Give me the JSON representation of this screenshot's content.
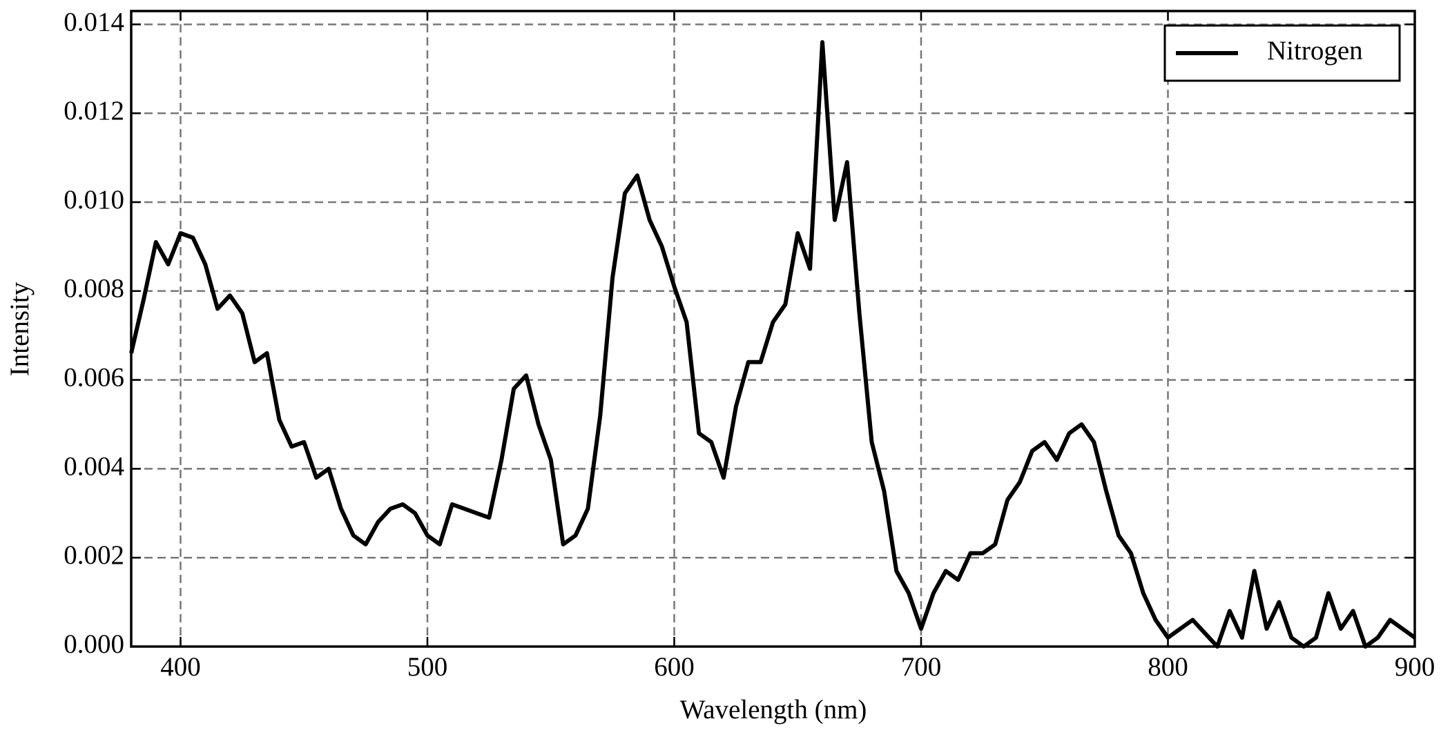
{
  "chart_data": {
    "type": "line",
    "xlabel": "Wavelength (nm)",
    "ylabel": "Intensity",
    "x": [
      380,
      385,
      390,
      395,
      400,
      405,
      410,
      415,
      420,
      425,
      430,
      435,
      440,
      445,
      450,
      455,
      460,
      465,
      470,
      475,
      480,
      485,
      490,
      495,
      500,
      505,
      510,
      515,
      520,
      525,
      530,
      535,
      540,
      545,
      550,
      555,
      560,
      565,
      570,
      575,
      580,
      585,
      590,
      595,
      600,
      605,
      610,
      615,
      620,
      625,
      630,
      635,
      640,
      645,
      650,
      655,
      660,
      665,
      670,
      675,
      680,
      685,
      690,
      695,
      700,
      705,
      710,
      715,
      720,
      725,
      730,
      735,
      740,
      745,
      750,
      755,
      760,
      765,
      770,
      775,
      780,
      785,
      790,
      795,
      800,
      805,
      810,
      815,
      820,
      825,
      830,
      835,
      840,
      845,
      850,
      855,
      860,
      865,
      870,
      875,
      880,
      885,
      890,
      895,
      900
    ],
    "series": [
      {
        "name": "Nitrogen",
        "color": "#000000",
        "values": [
          0.0066,
          0.0078,
          0.0091,
          0.0086,
          0.0093,
          0.0092,
          0.0086,
          0.0076,
          0.0079,
          0.0075,
          0.0064,
          0.0066,
          0.0051,
          0.0045,
          0.0046,
          0.0038,
          0.004,
          0.0031,
          0.0025,
          0.0023,
          0.0028,
          0.0031,
          0.0032,
          0.003,
          0.0025,
          0.0023,
          0.0032,
          0.0031,
          0.003,
          0.0029,
          0.0042,
          0.0058,
          0.0061,
          0.005,
          0.0042,
          0.0023,
          0.0025,
          0.0031,
          0.0052,
          0.0083,
          0.0102,
          0.0106,
          0.0096,
          0.009,
          0.0081,
          0.0073,
          0.0048,
          0.0046,
          0.0038,
          0.0054,
          0.0064,
          0.0064,
          0.0073,
          0.0077,
          0.0093,
          0.0085,
          0.0136,
          0.0096,
          0.0109,
          0.0075,
          0.0046,
          0.0035,
          0.0017,
          0.0012,
          0.0004,
          0.0012,
          0.0017,
          0.0015,
          0.0021,
          0.0021,
          0.0023,
          0.0033,
          0.0037,
          0.0044,
          0.0046,
          0.0042,
          0.0048,
          0.005,
          0.0046,
          0.0035,
          0.0025,
          0.0021,
          0.0012,
          0.0006,
          0.0002,
          0.0004,
          0.0006,
          0.0003,
          0.0,
          0.0008,
          0.0002,
          0.0017,
          0.0004,
          0.001,
          0.0002,
          0.0,
          0.0002,
          0.0012,
          0.0004,
          0.0008,
          0.0,
          0.0002,
          0.0006,
          0.0004,
          0.0002
        ]
      }
    ],
    "xlim": [
      380,
      900
    ],
    "ylim": [
      0,
      0.0143
    ],
    "xticks": [
      400,
      500,
      600,
      700,
      800,
      900
    ],
    "yticks": [
      {
        "value": 0,
        "label": "0.000"
      },
      {
        "value": 0.002,
        "label": "0.002"
      },
      {
        "value": 0.004,
        "label": "0.004"
      },
      {
        "value": 0.006,
        "label": "0.006"
      },
      {
        "value": 0.008,
        "label": "0.008"
      },
      {
        "value": 0.01,
        "label": "0.010"
      },
      {
        "value": 0.012,
        "label": "0.012"
      },
      {
        "value": 0.014,
        "label": "0.014"
      }
    ],
    "grid": true,
    "legend": "upper right"
  }
}
